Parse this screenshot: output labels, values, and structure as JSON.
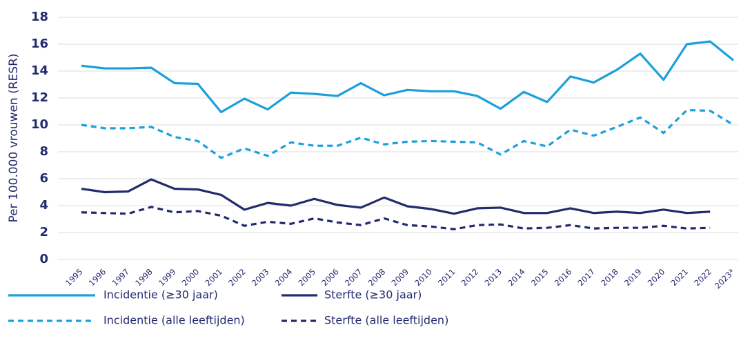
{
  "chart_data": {
    "type": "line",
    "y_label": "Per 100.000 vrouwen (RESR)",
    "categories": [
      "1995",
      "1996",
      "1997",
      "1998",
      "1999",
      "2000",
      "2001",
      "2002",
      "2003",
      "2004",
      "2005",
      "2006",
      "2007",
      "2008",
      "2009",
      "2010",
      "2011",
      "2012",
      "2013",
      "2014",
      "2015",
      "2016",
      "2017",
      "2018",
      "2019",
      "2020",
      "2021",
      "2022",
      "2023*"
    ],
    "series": [
      {
        "name": "Incidentie (≥30 jaar)",
        "color": "#1ba0dc",
        "dashed": false,
        "values": [
          14.4,
          14.2,
          14.2,
          14.25,
          13.1,
          13.05,
          10.95,
          11.95,
          11.15,
          12.4,
          12.3,
          12.15,
          13.1,
          12.2,
          12.6,
          12.5,
          12.5,
          12.15,
          11.2,
          12.45,
          11.7,
          13.6,
          13.15,
          14.1,
          15.3,
          13.35,
          16.0,
          16.2,
          14.8
        ]
      },
      {
        "name": "Sterfte (≥30 jaar)",
        "color": "#232a6e",
        "dashed": false,
        "values": [
          5.25,
          5.0,
          5.05,
          5.95,
          5.25,
          5.2,
          4.8,
          3.7,
          4.2,
          4.0,
          4.5,
          4.05,
          3.85,
          4.6,
          3.95,
          3.75,
          3.4,
          3.8,
          3.85,
          3.45,
          3.45,
          3.8,
          3.45,
          3.55,
          3.45,
          3.7,
          3.45,
          3.55,
          null
        ]
      },
      {
        "name": "Incidentie (alle leeftijden)",
        "color": "#1ba0dc",
        "dashed": true,
        "values": [
          10.0,
          9.75,
          9.75,
          9.85,
          9.1,
          8.8,
          7.55,
          8.25,
          7.7,
          8.7,
          8.45,
          8.45,
          9.05,
          8.55,
          8.75,
          8.8,
          8.75,
          8.7,
          7.8,
          8.8,
          8.4,
          9.65,
          9.2,
          9.85,
          10.55,
          9.4,
          11.1,
          11.05,
          10.0
        ]
      },
      {
        "name": "Sterfte (alle leeftijden)",
        "color": "#232a6e",
        "dashed": true,
        "values": [
          3.5,
          3.45,
          3.4,
          3.9,
          3.5,
          3.6,
          3.25,
          2.5,
          2.8,
          2.65,
          3.05,
          2.75,
          2.55,
          3.05,
          2.55,
          2.45,
          2.25,
          2.55,
          2.6,
          2.3,
          2.35,
          2.55,
          2.3,
          2.35,
          2.35,
          2.5,
          2.3,
          2.35,
          null
        ]
      }
    ],
    "ylim": [
      0,
      18
    ],
    "yticks": [
      0,
      2,
      4,
      6,
      8,
      10,
      12,
      14,
      16,
      18
    ],
    "grid": true
  }
}
